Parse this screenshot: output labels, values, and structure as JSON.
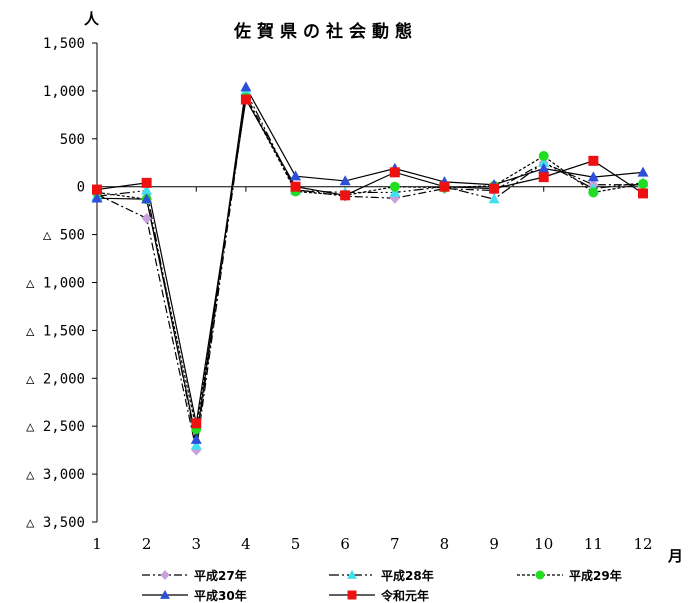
{
  "chart_data": {
    "type": "line",
    "title": "佐賀県の社会動態",
    "ylabel": "人",
    "xlabel": "月",
    "x": [
      1,
      2,
      3,
      4,
      5,
      6,
      7,
      8,
      9,
      10,
      11,
      12
    ],
    "x_tick_labels": [
      "1",
      "2",
      "3",
      "4",
      "5",
      "6",
      "7",
      "8",
      "9",
      "10",
      "11",
      "12"
    ],
    "ylim": [
      -3500,
      1500
    ],
    "y_ticks": [
      1500,
      1000,
      500,
      0,
      -500,
      -1000,
      -1500,
      -2000,
      -2500,
      -3000,
      -3500
    ],
    "y_tick_labels": [
      "1,500",
      "1,000",
      "500",
      "0",
      "△ 500",
      "△ 1,000",
      "△ 1,500",
      "△ 2,000",
      "△ 2,500",
      "△ 3,000",
      "△ 3,500"
    ],
    "grid": false,
    "legend_position": "bottom",
    "series": [
      {
        "name": "平成27年",
        "color": "#c9a0dc",
        "marker": "diamond",
        "dash": "8,3,2,3",
        "values": [
          -80,
          -330,
          -2750,
          950,
          -30,
          -100,
          -120,
          -20,
          -40,
          250,
          20,
          20
        ]
      },
      {
        "name": "平成28年",
        "color": "#40e0f0",
        "marker": "triangle",
        "dash": "10,3,2,3,2,3",
        "values": [
          -100,
          -40,
          -2700,
          1000,
          -40,
          -60,
          -60,
          0,
          -130,
          250,
          -20,
          40
        ]
      },
      {
        "name": "平成29年",
        "color": "#22dd22",
        "marker": "circle",
        "dash": "3,2",
        "values": [
          -60,
          -130,
          -2530,
          930,
          -50,
          -90,
          0,
          -10,
          10,
          320,
          -60,
          30
        ]
      },
      {
        "name": "平成30年",
        "color": "#2b4fd8",
        "marker": "triangle",
        "dash": "",
        "values": [
          -120,
          -130,
          -2640,
          1040,
          110,
          60,
          190,
          50,
          20,
          190,
          100,
          150
        ]
      },
      {
        "name": "令和元年",
        "color": "#ee1111",
        "marker": "square",
        "dash": "",
        "values": [
          -30,
          40,
          -2470,
          910,
          0,
          -90,
          150,
          0,
          -20,
          100,
          270,
          -70
        ]
      }
    ]
  }
}
